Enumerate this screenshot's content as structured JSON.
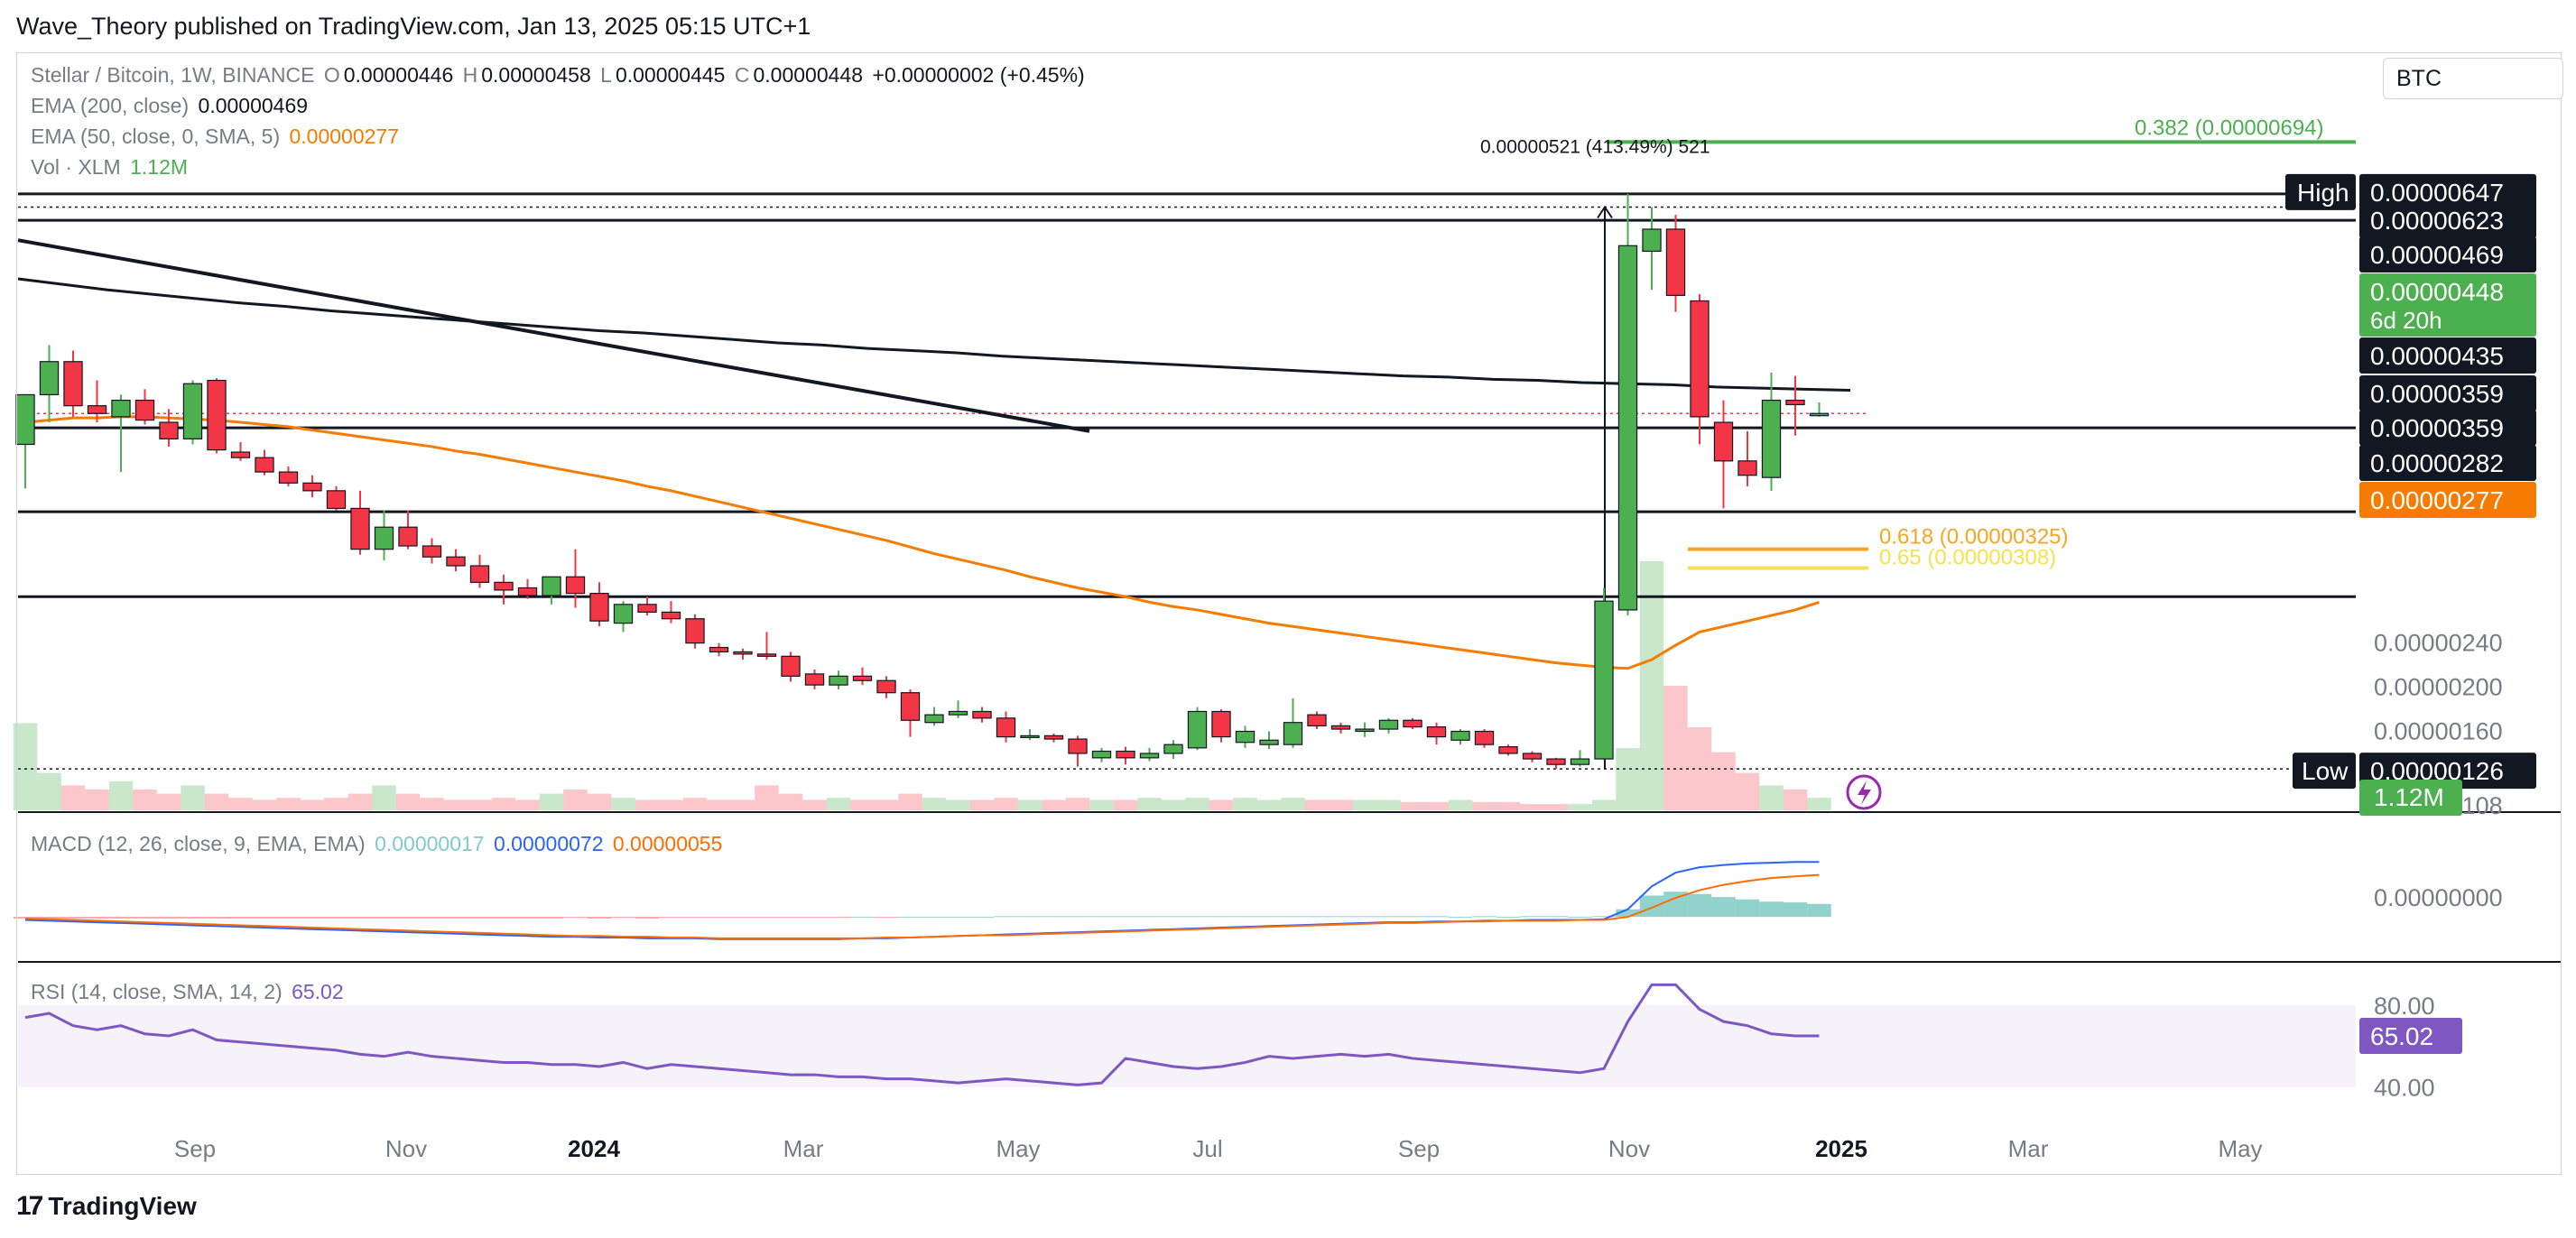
{
  "publisher": "Wave_Theory published on TradingView.com, Jan 13, 2025 05:15 UTC+1",
  "symbol": "Stellar / Bitcoin, 1W, BINANCE",
  "ohlc": {
    "o_label": "O",
    "o": "0.00000446",
    "h_label": "H",
    "h": "0.00000458",
    "l_label": "L",
    "l": "0.00000445",
    "c_label": "C",
    "c": "0.00000448",
    "change": "+0.00000002 (+0.45%)"
  },
  "indicators": {
    "ema200": {
      "label": "EMA (200, close)",
      "value": "0.00000469"
    },
    "ema50": {
      "label": "EMA (50, close, 0, SMA, 5)",
      "value": "0.00000277"
    },
    "vol": {
      "label": "Vol · XLM",
      "value": "1.12M"
    },
    "macd": {
      "label": "MACD (12, 26, close, 9, EMA, EMA)",
      "hist": "0.00000017",
      "macd": "0.00000072",
      "signal": "0.00000055"
    },
    "rsi": {
      "label": "RSI (14, close, SMA, 14, 2)",
      "value": "65.02"
    }
  },
  "currency": "BTC",
  "branding": "TradingView",
  "colors": {
    "up": "#4caf50",
    "down": "#f23645",
    "ema50": "#f57c00",
    "ema200": "#131722",
    "macd": "#2962ff",
    "signal": "#ff6d00",
    "rsi": "#7e57c2",
    "fib618": "#f5a623",
    "fib65": "#f7e14c",
    "fib382": "#4caf50"
  },
  "chart_data": {
    "type": "candlestick",
    "x_ticks": [
      "Sep",
      "Nov",
      "2024",
      "Mar",
      "May",
      "Jul",
      "Sep",
      "Nov",
      "2025",
      "Mar",
      "May"
    ],
    "price_scale": [
      "0.00000200",
      "0.00000160",
      "0.00000240",
      "0.00000108",
      "0.00000000",
      "80.00",
      "40.00"
    ],
    "ylim": [
      9.5e-07,
      7e-06
    ],
    "candles": [
      {
        "o": 4.2e-06,
        "h": 4.6e-06,
        "l": 3.8e-06,
        "c": 4.65e-06
      },
      {
        "o": 4.65e-06,
        "h": 5.1e-06,
        "l": 4.4e-06,
        "c": 4.95e-06
      },
      {
        "o": 4.95e-06,
        "h": 5.05e-06,
        "l": 4.45e-06,
        "c": 4.55e-06
      },
      {
        "o": 4.55e-06,
        "h": 4.78e-06,
        "l": 4.4e-06,
        "c": 4.48e-06
      },
      {
        "o": 4.45e-06,
        "h": 4.65e-06,
        "l": 3.95e-06,
        "c": 4.6e-06
      },
      {
        "o": 4.6e-06,
        "h": 4.7e-06,
        "l": 4.38e-06,
        "c": 4.42e-06
      },
      {
        "o": 4.4e-06,
        "h": 4.52e-06,
        "l": 4.18e-06,
        "c": 4.25e-06
      },
      {
        "o": 4.25e-06,
        "h": 4.78e-06,
        "l": 4.2e-06,
        "c": 4.75e-06
      },
      {
        "o": 4.78e-06,
        "h": 4.8e-06,
        "l": 4.12e-06,
        "c": 4.15e-06
      },
      {
        "o": 4.13e-06,
        "h": 4.22e-06,
        "l": 4.05e-06,
        "c": 4.08e-06
      },
      {
        "o": 4.08e-06,
        "h": 4.15e-06,
        "l": 3.92e-06,
        "c": 3.95e-06
      },
      {
        "o": 3.95e-06,
        "h": 4e-06,
        "l": 3.82e-06,
        "c": 3.85e-06
      },
      {
        "o": 3.85e-06,
        "h": 3.92e-06,
        "l": 3.72e-06,
        "c": 3.78e-06
      },
      {
        "o": 3.78e-06,
        "h": 3.82e-06,
        "l": 3.6e-06,
        "c": 3.62e-06
      },
      {
        "o": 3.62e-06,
        "h": 3.78e-06,
        "l": 3.2e-06,
        "c": 3.25e-06
      },
      {
        "o": 3.25e-06,
        "h": 3.6e-06,
        "l": 3.15e-06,
        "c": 3.45e-06
      },
      {
        "o": 3.45e-06,
        "h": 3.6e-06,
        "l": 3.25e-06,
        "c": 3.28e-06
      },
      {
        "o": 3.28e-06,
        "h": 3.35e-06,
        "l": 3.12e-06,
        "c": 3.18e-06
      },
      {
        "o": 3.18e-06,
        "h": 3.25e-06,
        "l": 3.05e-06,
        "c": 3.1e-06
      },
      {
        "o": 3.1e-06,
        "h": 3.2e-06,
        "l": 2.9e-06,
        "c": 2.95e-06
      },
      {
        "o": 2.95e-06,
        "h": 3.02e-06,
        "l": 2.75e-06,
        "c": 2.88e-06
      },
      {
        "o": 2.9e-06,
        "h": 2.98e-06,
        "l": 2.8e-06,
        "c": 2.83e-06
      },
      {
        "o": 2.83e-06,
        "h": 3e-06,
        "l": 2.75e-06,
        "c": 3e-06
      },
      {
        "o": 3e-06,
        "h": 3.25e-06,
        "l": 2.72e-06,
        "c": 2.85e-06
      },
      {
        "o": 2.85e-06,
        "h": 2.95e-06,
        "l": 2.55e-06,
        "c": 2.6e-06
      },
      {
        "o": 2.58e-06,
        "h": 2.78e-06,
        "l": 2.5e-06,
        "c": 2.75e-06
      },
      {
        "o": 2.75e-06,
        "h": 2.82e-06,
        "l": 2.65e-06,
        "c": 2.68e-06
      },
      {
        "o": 2.68e-06,
        "h": 2.78e-06,
        "l": 2.58e-06,
        "c": 2.62e-06
      },
      {
        "o": 2.62e-06,
        "h": 2.66e-06,
        "l": 2.35e-06,
        "c": 2.4e-06
      },
      {
        "o": 2.36e-06,
        "h": 2.4e-06,
        "l": 2.28e-06,
        "c": 2.32e-06
      },
      {
        "o": 2.32e-06,
        "h": 2.35e-06,
        "l": 2.25e-06,
        "c": 2.3e-06
      },
      {
        "o": 2.3e-06,
        "h": 2.5e-06,
        "l": 2.25e-06,
        "c": 2.28e-06
      },
      {
        "o": 2.28e-06,
        "h": 2.32e-06,
        "l": 2.05e-06,
        "c": 2.1e-06
      },
      {
        "o": 2.12e-06,
        "h": 2.16e-06,
        "l": 1.98e-06,
        "c": 2.02e-06
      },
      {
        "o": 2.02e-06,
        "h": 2.15e-06,
        "l": 1.98e-06,
        "c": 2.1e-06
      },
      {
        "o": 2.1e-06,
        "h": 2.18e-06,
        "l": 2.02e-06,
        "c": 2.06e-06
      },
      {
        "o": 2.06e-06,
        "h": 2.1e-06,
        "l": 1.9e-06,
        "c": 1.95e-06
      },
      {
        "o": 1.95e-06,
        "h": 1.98e-06,
        "l": 1.55e-06,
        "c": 1.7e-06
      },
      {
        "o": 1.68e-06,
        "h": 1.82e-06,
        "l": 1.65e-06,
        "c": 1.75e-06
      },
      {
        "o": 1.75e-06,
        "h": 1.88e-06,
        "l": 1.72e-06,
        "c": 1.78e-06
      },
      {
        "o": 1.78e-06,
        "h": 1.82e-06,
        "l": 1.68e-06,
        "c": 1.72e-06
      },
      {
        "o": 1.72e-06,
        "h": 1.78e-06,
        "l": 1.5e-06,
        "c": 1.55e-06
      },
      {
        "o": 1.55e-06,
        "h": 1.62e-06,
        "l": 1.52e-06,
        "c": 1.56e-06
      },
      {
        "o": 1.56e-06,
        "h": 1.58e-06,
        "l": 1.5e-06,
        "c": 1.53e-06
      },
      {
        "o": 1.53e-06,
        "h": 1.56e-06,
        "l": 1.28e-06,
        "c": 1.4e-06
      },
      {
        "o": 1.36e-06,
        "h": 1.45e-06,
        "l": 1.32e-06,
        "c": 1.42e-06
      },
      {
        "o": 1.42e-06,
        "h": 1.46e-06,
        "l": 1.3e-06,
        "c": 1.36e-06
      },
      {
        "o": 1.36e-06,
        "h": 1.45e-06,
        "l": 1.33e-06,
        "c": 1.4e-06
      },
      {
        "o": 1.4e-06,
        "h": 1.52e-06,
        "l": 1.35e-06,
        "c": 1.48e-06
      },
      {
        "o": 1.45e-06,
        "h": 1.82e-06,
        "l": 1.43e-06,
        "c": 1.78e-06
      },
      {
        "o": 1.78e-06,
        "h": 1.8e-06,
        "l": 1.5e-06,
        "c": 1.55e-06
      },
      {
        "o": 1.5e-06,
        "h": 1.65e-06,
        "l": 1.45e-06,
        "c": 1.6e-06
      },
      {
        "o": 1.48e-06,
        "h": 1.6e-06,
        "l": 1.44e-06,
        "c": 1.52e-06
      },
      {
        "o": 1.48e-06,
        "h": 1.9e-06,
        "l": 1.45e-06,
        "c": 1.68e-06
      },
      {
        "o": 1.75e-06,
        "h": 1.78e-06,
        "l": 1.62e-06,
        "c": 1.65e-06
      },
      {
        "o": 1.65e-06,
        "h": 1.68e-06,
        "l": 1.58e-06,
        "c": 1.62e-06
      },
      {
        "o": 1.6e-06,
        "h": 1.68e-06,
        "l": 1.55e-06,
        "c": 1.62e-06
      },
      {
        "o": 1.62e-06,
        "h": 1.72e-06,
        "l": 1.58e-06,
        "c": 1.7e-06
      },
      {
        "o": 1.7e-06,
        "h": 1.72e-06,
        "l": 1.62e-06,
        "c": 1.64e-06
      },
      {
        "o": 1.64e-06,
        "h": 1.68e-06,
        "l": 1.48e-06,
        "c": 1.55e-06
      },
      {
        "o": 1.52e-06,
        "h": 1.62e-06,
        "l": 1.48e-06,
        "c": 1.6e-06
      },
      {
        "o": 1.6e-06,
        "h": 1.62e-06,
        "l": 1.45e-06,
        "c": 1.48e-06
      },
      {
        "o": 1.46e-06,
        "h": 1.48e-06,
        "l": 1.38e-06,
        "c": 1.4e-06
      },
      {
        "o": 1.4e-06,
        "h": 1.42e-06,
        "l": 1.32e-06,
        "c": 1.35e-06
      },
      {
        "o": 1.35e-06,
        "h": 1.36e-06,
        "l": 1.26e-06,
        "c": 1.3e-06
      },
      {
        "o": 1.3e-06,
        "h": 1.43e-06,
        "l": 1.28e-06,
        "c": 1.35e-06
      },
      {
        "o": 1.35e-06,
        "h": 2.9e-06,
        "l": 1.34e-06,
        "c": 2.78e-06
      },
      {
        "o": 2.7e-06,
        "h": 6.47e-06,
        "l": 2.65e-06,
        "c": 6e-06
      },
      {
        "o": 5.95e-06,
        "h": 6.35e-06,
        "l": 5.6e-06,
        "c": 6.15e-06
      },
      {
        "o": 6.15e-06,
        "h": 6.28e-06,
        "l": 5.4e-06,
        "c": 5.55e-06
      },
      {
        "o": 5.5e-06,
        "h": 5.56e-06,
        "l": 4.2e-06,
        "c": 4.45e-06
      },
      {
        "o": 4.4e-06,
        "h": 4.6e-06,
        "l": 3.62e-06,
        "c": 4.05e-06
      },
      {
        "o": 4.05e-06,
        "h": 4.32e-06,
        "l": 3.82e-06,
        "c": 3.92e-06
      },
      {
        "o": 3.9e-06,
        "h": 4.85e-06,
        "l": 3.78e-06,
        "c": 4.6e-06
      },
      {
        "o": 4.6e-06,
        "h": 4.82e-06,
        "l": 4.28e-06,
        "c": 4.56e-06
      },
      {
        "o": 4.46e-06,
        "h": 4.58e-06,
        "l": 4.45e-06,
        "c": 4.48e-06
      }
    ],
    "volume": [
      42,
      18,
      12,
      10,
      14,
      10,
      8,
      12,
      8,
      6,
      5,
      6,
      5,
      6,
      8,
      12,
      8,
      6,
      5,
      5,
      6,
      5,
      8,
      10,
      8,
      6,
      5,
      5,
      6,
      5,
      5,
      12,
      8,
      5,
      6,
      5,
      5,
      8,
      6,
      5,
      5,
      6,
      5,
      5,
      6,
      5,
      5,
      6,
      5,
      6,
      5,
      6,
      5,
      6,
      5,
      5,
      5,
      5,
      4,
      4,
      5,
      4,
      4,
      3,
      3,
      3,
      5,
      30,
      120,
      60,
      40,
      28,
      18,
      12,
      10,
      6
    ],
    "ema50": [
      4.4e-06,
      4.42e-06,
      4.44e-06,
      4.44e-06,
      4.45e-06,
      4.45e-06,
      4.44e-06,
      4.43e-06,
      4.42e-06,
      4.4e-06,
      4.38e-06,
      4.36e-06,
      4.33e-06,
      4.3e-06,
      4.27e-06,
      4.24e-06,
      4.21e-06,
      4.18e-06,
      4.14e-06,
      4.11e-06,
      4.07e-06,
      4.03e-06,
      3.99e-06,
      3.95e-06,
      3.91e-06,
      3.87e-06,
      3.82e-06,
      3.78e-06,
      3.73e-06,
      3.68e-06,
      3.63e-06,
      3.58e-06,
      3.53e-06,
      3.48e-06,
      3.43e-06,
      3.38e-06,
      3.33e-06,
      3.27e-06,
      3.21e-06,
      3.16e-06,
      3.11e-06,
      3.06e-06,
      3e-06,
      2.95e-06,
      2.9e-06,
      2.86e-06,
      2.82e-06,
      2.77e-06,
      2.73e-06,
      2.7e-06,
      2.66e-06,
      2.62e-06,
      2.58e-06,
      2.55e-06,
      2.52e-06,
      2.49e-06,
      2.46e-06,
      2.43e-06,
      2.4e-06,
      2.37e-06,
      2.34e-06,
      2.31e-06,
      2.28e-06,
      2.25e-06,
      2.22e-06,
      2.2e-06,
      2.18e-06,
      2.17e-06,
      2.25e-06,
      2.38e-06,
      2.5e-06,
      2.55e-06,
      2.6e-06,
      2.65e-06,
      2.7e-06,
      2.77e-06
    ],
    "ema200": [
      5.7e-06,
      5.65e-06,
      5.6e-06,
      5.56e-06,
      5.52e-06,
      5.48e-06,
      5.45e-06,
      5.41e-06,
      5.38e-06,
      5.35e-06,
      5.32e-06,
      5.29e-06,
      5.26e-06,
      5.23e-06,
      5.21e-06,
      5.18e-06,
      5.15e-06,
      5.12e-06,
      5.1e-06,
      5.07e-06,
      5.05e-06,
      5.03e-06,
      5e-06,
      4.98e-06,
      4.96e-06,
      4.94e-06,
      4.92e-06,
      4.9e-06,
      4.88e-06,
      4.86e-06,
      4.84e-06,
      4.82e-06,
      4.81e-06,
      4.79e-06,
      4.78e-06,
      4.76e-06,
      4.75e-06,
      4.74e-06,
      4.72e-06,
      4.71e-06,
      4.7e-06,
      4.69e-06
    ],
    "macd": [
      -4e-08,
      -5e-08,
      -6e-08,
      -7e-08,
      -8e-08,
      -9e-08,
      -1e-07,
      -1.1e-07,
      -1.2e-07,
      -1.3e-07,
      -1.4e-07,
      -1.5e-07,
      -1.6e-07,
      -1.7e-07,
      -1.8e-07,
      -1.9e-07,
      -2e-07,
      -2.1e-07,
      -2.2e-07,
      -2.3e-07,
      -2.4e-07,
      -2.5e-07,
      -2.6e-07,
      -2.6e-07,
      -2.7e-07,
      -2.7e-07,
      -2.8e-07,
      -2.8e-07,
      -2.8e-07,
      -2.9e-07,
      -2.9e-07,
      -2.9e-07,
      -2.9e-07,
      -2.9e-07,
      -2.9e-07,
      -2.8e-07,
      -2.8e-07,
      -2.7e-07,
      -2.6e-07,
      -2.5e-07,
      -2.4e-07,
      -2.3e-07,
      -2.2e-07,
      -2.1e-07,
      -2e-07,
      -1.9e-07,
      -1.8e-07,
      -1.7e-07,
      -1.6e-07,
      -1.5e-07,
      -1.4e-07,
      -1.3e-07,
      -1.2e-07,
      -1.1e-07,
      -1e-07,
      -9e-08,
      -8e-08,
      -7e-08,
      -7e-08,
      -6e-08,
      -6e-08,
      -5e-08,
      -5e-08,
      -4e-08,
      -4e-08,
      -4e-08,
      -3e-08,
      1e-07,
      4e-07,
      5.8e-07,
      6.5e-07,
      6.8e-07,
      7e-07,
      7.1e-07,
      7.2e-07,
      7.2e-07
    ],
    "signal": [
      -2e-08,
      -3e-08,
      -4e-08,
      -5e-08,
      -6e-08,
      -7e-08,
      -8e-08,
      -9e-08,
      -1e-07,
      -1.1e-07,
      -1.2e-07,
      -1.3e-07,
      -1.4e-07,
      -1.5e-07,
      -1.6e-07,
      -1.7e-07,
      -1.8e-07,
      -1.9e-07,
      -2e-07,
      -2.1e-07,
      -2.2e-07,
      -2.3e-07,
      -2.4e-07,
      -2.5e-07,
      -2.5e-07,
      -2.6e-07,
      -2.6e-07,
      -2.7e-07,
      -2.7e-07,
      -2.8e-07,
      -2.8e-07,
      -2.8e-07,
      -2.8e-07,
      -2.8e-07,
      -2.8e-07,
      -2.8e-07,
      -2.7e-07,
      -2.7e-07,
      -2.6e-07,
      -2.5e-07,
      -2.4e-07,
      -2.4e-07,
      -2.3e-07,
      -2.2e-07,
      -2.1e-07,
      -2e-07,
      -1.9e-07,
      -1.8e-07,
      -1.7e-07,
      -1.6e-07,
      -1.5e-07,
      -1.4e-07,
      -1.3e-07,
      -1.2e-07,
      -1.1e-07,
      -1e-07,
      -9e-08,
      -8e-08,
      -8e-08,
      -7e-08,
      -6e-08,
      -6e-08,
      -5e-08,
      -5e-08,
      -5e-08,
      -4e-08,
      -4e-08,
      0.0,
      1.2e-07,
      2.5e-07,
      3.5e-07,
      4.2e-07,
      4.7e-07,
      5.1e-07,
      5.3e-07,
      5.5e-07
    ],
    "rsi": [
      74,
      76,
      70,
      68,
      70,
      66,
      65,
      68,
      63,
      62,
      61,
      60,
      59,
      58,
      56,
      55,
      57,
      55,
      54,
      53,
      52,
      52,
      51,
      51,
      50,
      52,
      49,
      51,
      50,
      49,
      48,
      47,
      46,
      46,
      45,
      45,
      44,
      44,
      43,
      42,
      43,
      44,
      43,
      42,
      41,
      42,
      54,
      52,
      50,
      49,
      50,
      52,
      55,
      54,
      55,
      56,
      55,
      56,
      54,
      53,
      52,
      51,
      50,
      49,
      48,
      47,
      49,
      72,
      90,
      90,
      78,
      72,
      70,
      66,
      65,
      65
    ],
    "levels": {
      "h623": "0.00000623",
      "h469": "0.00000469",
      "h435": "0.00000435",
      "h359a": "0.00000359",
      "h359b": "0.00000359",
      "h282": "0.00000282"
    },
    "fib": {
      "f382": "0.382 (0.00000694)",
      "f618": "0.618 (0.00000325)",
      "f65": "0.65 (0.00000308)"
    },
    "measure_label": "0.00000521 (413.49%) 521",
    "high": {
      "label": "High",
      "value": "0.00000647"
    },
    "low": {
      "label": "Low",
      "value": "0.00000126"
    },
    "price_tag": {
      "value": "0.00000448",
      "countdown": "6d 20h"
    },
    "ema50_tag": "0.00000277",
    "vol_tag": "1.12M",
    "rsi_tag": "65.02",
    "rsi_bands": [
      80,
      40
    ]
  }
}
